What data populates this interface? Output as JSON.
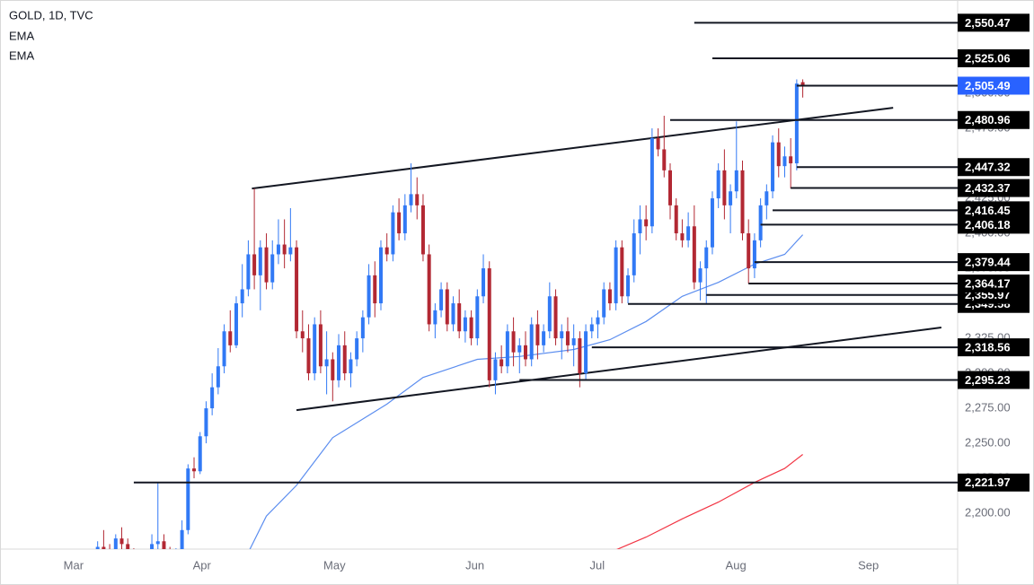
{
  "chart_data": {
    "type": "candlestick",
    "title": "GOLD, 1D, TVC",
    "xlim": [
      -12.2,
      146.7
    ],
    "ylim": [
      2174.4,
      2566.7
    ],
    "xticks": [
      {
        "value": 0,
        "label": "Mar"
      },
      {
        "value": 21.3,
        "label": "Apr"
      },
      {
        "value": 43.3,
        "label": "May"
      },
      {
        "value": 66.6,
        "label": "Jun"
      },
      {
        "value": 86.9,
        "label": "Jul"
      },
      {
        "value": 109.9,
        "label": "Aug"
      },
      {
        "value": 131.9,
        "label": "Sep"
      }
    ],
    "yticks": [
      {
        "value": 2200,
        "label": "2,200.00"
      },
      {
        "value": 2225,
        "label": "2,225.00"
      },
      {
        "value": 2250,
        "label": "2,250.00"
      },
      {
        "value": 2275,
        "label": "2,275.00"
      },
      {
        "value": 2300,
        "label": "2,300.00"
      },
      {
        "value": 2325,
        "label": "2,325.00"
      },
      {
        "value": 2350,
        "label": "2,350.00"
      },
      {
        "value": 2375,
        "label": "2,375.00"
      },
      {
        "value": 2400,
        "label": "2,400.00"
      },
      {
        "value": 2425,
        "label": "2,425.00"
      },
      {
        "value": 2450,
        "label": "2,450.00"
      },
      {
        "value": 2475,
        "label": "2,475.00"
      },
      {
        "value": 2500,
        "label": "2,500.00"
      },
      {
        "value": 2525,
        "label": "2,525.00"
      },
      {
        "value": 2550,
        "label": "2,550.00"
      }
    ],
    "up_color": "#3179f5",
    "down_color": "#b22833",
    "candles": {
      "x": [
        4,
        5,
        6,
        7,
        8,
        9,
        10,
        11,
        12,
        13,
        14,
        15,
        16,
        17,
        18,
        19,
        20,
        21,
        22,
        23,
        24,
        25,
        26,
        27,
        28,
        29,
        30,
        31,
        32,
        33,
        34,
        35,
        36,
        37,
        38,
        39,
        40,
        41,
        42,
        43,
        44,
        45,
        46,
        47,
        48,
        49,
        50,
        51,
        52,
        53,
        54,
        55,
        56,
        57,
        58,
        59,
        60,
        61,
        62,
        63,
        64,
        65,
        66,
        67,
        68,
        69,
        70,
        71,
        72,
        73,
        74,
        75,
        76,
        77,
        78,
        79,
        80,
        81,
        82,
        83,
        84,
        85,
        86,
        87,
        88,
        89,
        90,
        91,
        92,
        93,
        94,
        95,
        96,
        97,
        98,
        99,
        100,
        101,
        102,
        103,
        104,
        105,
        106,
        107,
        108,
        109,
        110,
        111,
        112,
        113,
        114,
        115,
        116,
        117,
        118,
        119,
        120,
        121
      ],
      "ohlc": [
        [
          2160,
          2180,
          2155,
          2176
        ],
        [
          2176,
          2188,
          2168,
          2172
        ],
        [
          2172,
          2178,
          2160,
          2165
        ],
        [
          2165,
          2185,
          2160,
          2182
        ],
        [
          2182,
          2190,
          2170,
          2178
        ],
        [
          2178,
          2182,
          2165,
          2170
        ],
        [
          2170,
          2175,
          2155,
          2160
        ],
        [
          2160,
          2168,
          2150,
          2158
        ],
        [
          2158,
          2165,
          2150,
          2162
        ],
        [
          2162,
          2185,
          2158,
          2178
        ],
        [
          2178,
          2222,
          2170,
          2180
        ],
        [
          2180,
          2185,
          2165,
          2170
        ],
        [
          2170,
          2176,
          2160,
          2165
        ],
        [
          2165,
          2175,
          2160,
          2172
        ],
        [
          2172,
          2195,
          2168,
          2188
        ],
        [
          2188,
          2235,
          2185,
          2232
        ],
        [
          2232,
          2240,
          2225,
          2230
        ],
        [
          2230,
          2258,
          2228,
          2255
        ],
        [
          2255,
          2280,
          2250,
          2275
        ],
        [
          2275,
          2300,
          2270,
          2290
        ],
        [
          2290,
          2318,
          2285,
          2305
        ],
        [
          2305,
          2335,
          2300,
          2330
        ],
        [
          2330,
          2345,
          2315,
          2320
        ],
        [
          2320,
          2355,
          2318,
          2350
        ],
        [
          2350,
          2378,
          2340,
          2360
        ],
        [
          2360,
          2395,
          2355,
          2385
        ],
        [
          2385,
          2432,
          2360,
          2370
        ],
        [
          2370,
          2395,
          2345,
          2390
        ],
        [
          2390,
          2400,
          2360,
          2365
        ],
        [
          2365,
          2395,
          2360,
          2385
        ],
        [
          2385,
          2410,
          2378,
          2392
        ],
        [
          2392,
          2410,
          2375,
          2385
        ],
        [
          2385,
          2418,
          2380,
          2390
        ],
        [
          2390,
          2395,
          2325,
          2330
        ],
        [
          2330,
          2345,
          2315,
          2325
        ],
        [
          2325,
          2335,
          2295,
          2300
        ],
        [
          2300,
          2340,
          2295,
          2335
        ],
        [
          2335,
          2345,
          2300,
          2305
        ],
        [
          2305,
          2330,
          2285,
          2310
        ],
        [
          2310,
          2315,
          2280,
          2295
        ],
        [
          2295,
          2328,
          2290,
          2320
        ],
        [
          2320,
          2330,
          2295,
          2300
        ],
        [
          2300,
          2315,
          2290,
          2310
        ],
        [
          2310,
          2330,
          2305,
          2325
        ],
        [
          2325,
          2345,
          2315,
          2340
        ],
        [
          2340,
          2378,
          2335,
          2370
        ],
        [
          2370,
          2380,
          2340,
          2350
        ],
        [
          2350,
          2395,
          2345,
          2390
        ],
        [
          2390,
          2400,
          2380,
          2385
        ],
        [
          2385,
          2420,
          2380,
          2415
        ],
        [
          2415,
          2425,
          2395,
          2400
        ],
        [
          2400,
          2428,
          2395,
          2420
        ],
        [
          2420,
          2450,
          2415,
          2428
        ],
        [
          2428,
          2440,
          2410,
          2420
        ],
        [
          2420,
          2428,
          2380,
          2385
        ],
        [
          2385,
          2392,
          2330,
          2335
        ],
        [
          2335,
          2350,
          2325,
          2345
        ],
        [
          2345,
          2365,
          2340,
          2360
        ],
        [
          2360,
          2365,
          2330,
          2335
        ],
        [
          2335,
          2355,
          2330,
          2350
        ],
        [
          2350,
          2360,
          2325,
          2330
        ],
        [
          2330,
          2345,
          2322,
          2340
        ],
        [
          2340,
          2345,
          2320,
          2325
        ],
        [
          2325,
          2360,
          2320,
          2355
        ],
        [
          2355,
          2385,
          2350,
          2375
        ],
        [
          2375,
          2380,
          2290,
          2295
        ],
        [
          2295,
          2315,
          2285,
          2310
        ],
        [
          2310,
          2320,
          2300,
          2305
        ],
        [
          2305,
          2335,
          2300,
          2330
        ],
        [
          2330,
          2340,
          2305,
          2315
        ],
        [
          2315,
          2325,
          2300,
          2320
        ],
        [
          2320,
          2330,
          2305,
          2310
        ],
        [
          2310,
          2340,
          2305,
          2335
        ],
        [
          2335,
          2345,
          2310,
          2320
        ],
        [
          2320,
          2335,
          2315,
          2330
        ],
        [
          2330,
          2365,
          2325,
          2355
        ],
        [
          2355,
          2360,
          2320,
          2325
        ],
        [
          2325,
          2335,
          2310,
          2330
        ],
        [
          2330,
          2340,
          2315,
          2320
        ],
        [
          2320,
          2335,
          2305,
          2325
        ],
        [
          2325,
          2330,
          2290,
          2300
        ],
        [
          2300,
          2335,
          2295,
          2330
        ],
        [
          2330,
          2340,
          2325,
          2335
        ],
        [
          2335,
          2345,
          2325,
          2340
        ],
        [
          2340,
          2365,
          2335,
          2360
        ],
        [
          2360,
          2365,
          2345,
          2350
        ],
        [
          2350,
          2395,
          2345,
          2390
        ],
        [
          2390,
          2395,
          2350,
          2355
        ],
        [
          2355,
          2375,
          2350,
          2370
        ],
        [
          2370,
          2410,
          2365,
          2400
        ],
        [
          2400,
          2420,
          2385,
          2410
        ],
        [
          2410,
          2420,
          2395,
          2405
        ],
        [
          2405,
          2475,
          2400,
          2468
        ],
        [
          2468,
          2475,
          2455,
          2460
        ],
        [
          2460,
          2484,
          2440,
          2445
        ],
        [
          2445,
          2450,
          2410,
          2420
        ],
        [
          2420,
          2425,
          2395,
          2400
        ],
        [
          2400,
          2410,
          2390,
          2395
        ],
        [
          2395,
          2415,
          2390,
          2405
        ],
        [
          2405,
          2420,
          2360,
          2365
        ],
        [
          2365,
          2380,
          2352,
          2375
        ],
        [
          2375,
          2395,
          2350,
          2390
        ],
        [
          2390,
          2430,
          2385,
          2425
        ],
        [
          2425,
          2450,
          2418,
          2445
        ],
        [
          2445,
          2460,
          2410,
          2420
        ],
        [
          2420,
          2435,
          2400,
          2430
        ],
        [
          2430,
          2480,
          2425,
          2445
        ],
        [
          2445,
          2452,
          2395,
          2400
        ],
        [
          2400,
          2410,
          2364,
          2375
        ],
        [
          2375,
          2400,
          2368,
          2395
        ],
        [
          2395,
          2425,
          2390,
          2420
        ],
        [
          2420,
          2435,
          2410,
          2430
        ],
        [
          2430,
          2470,
          2425,
          2465
        ],
        [
          2465,
          2475,
          2440,
          2448
        ],
        [
          2448,
          2462,
          2440,
          2455
        ],
        [
          2455,
          2468,
          2432,
          2450
        ],
        [
          2450,
          2510,
          2445,
          2507
        ],
        [
          2508,
          2510,
          2497,
          2505.49
        ]
      ]
    },
    "series": [
      {
        "name": "EMA",
        "color": "#5b8def",
        "x": [
          29,
          32,
          37,
          43,
          52,
          58,
          67,
          74,
          83,
          89,
          95,
          101,
          107,
          113,
          118,
          121
        ],
        "values": [
          2172,
          2198,
          2220,
          2254,
          2278,
          2297,
          2310,
          2312,
          2317,
          2324,
          2337,
          2355,
          2365,
          2378,
          2385,
          2399
        ]
      },
      {
        "name": "EMA",
        "color": "#f23645",
        "x": [
          89,
          95,
          101,
          107,
          113,
          118,
          121
        ],
        "values": [
          2172,
          2183,
          2196,
          2208,
          2222,
          2232,
          2242
        ]
      }
    ],
    "trendlines": [
      {
        "x": [
          29.6,
          136
        ],
        "y": [
          2432,
          2489.7
        ]
      },
      {
        "x": [
          37,
          144
        ],
        "y": [
          2273.7,
          2332.7
        ]
      }
    ],
    "levels": [
      {
        "value": 2550.47,
        "label": "2,550.47",
        "from": 103,
        "color": "#000000"
      },
      {
        "value": 2525.06,
        "label": "2,525.06",
        "from": 106,
        "color": "#000000"
      },
      {
        "value": 2505.49,
        "label": "2,505.49",
        "from": 120,
        "color": "#2962ff"
      },
      {
        "value": 2480.96,
        "label": "2,480.96",
        "from": 99,
        "color": "#000000"
      },
      {
        "value": 2447.32,
        "label": "2,447.32",
        "from": 120,
        "color": "#000000"
      },
      {
        "value": 2432.37,
        "label": "2,432.37",
        "from": 119,
        "color": "#000000"
      },
      {
        "value": 2416.45,
        "label": "2,416.45",
        "from": 116,
        "color": "#000000"
      },
      {
        "value": 2406.18,
        "label": "2,406.18",
        "from": 114,
        "color": "#000000"
      },
      {
        "value": 2379.44,
        "label": "2,379.44",
        "from": 113,
        "color": "#000000"
      },
      {
        "value": 2364.17,
        "label": "2,364.17",
        "from": 112,
        "color": "#000000"
      },
      {
        "value": 2355.97,
        "label": "2,355.97",
        "from": 105,
        "color": "#000000"
      },
      {
        "value": 2349.58,
        "label": "2,349.58",
        "from": 92,
        "color": "#000000"
      },
      {
        "value": 2318.56,
        "label": "2,318.56",
        "from": 86,
        "color": "#000000"
      },
      {
        "value": 2295.23,
        "label": "2,295.23",
        "from": 74,
        "color": "#000000"
      },
      {
        "value": 2221.97,
        "label": "2,221.97",
        "from": 10,
        "color": "#000000"
      }
    ]
  }
}
